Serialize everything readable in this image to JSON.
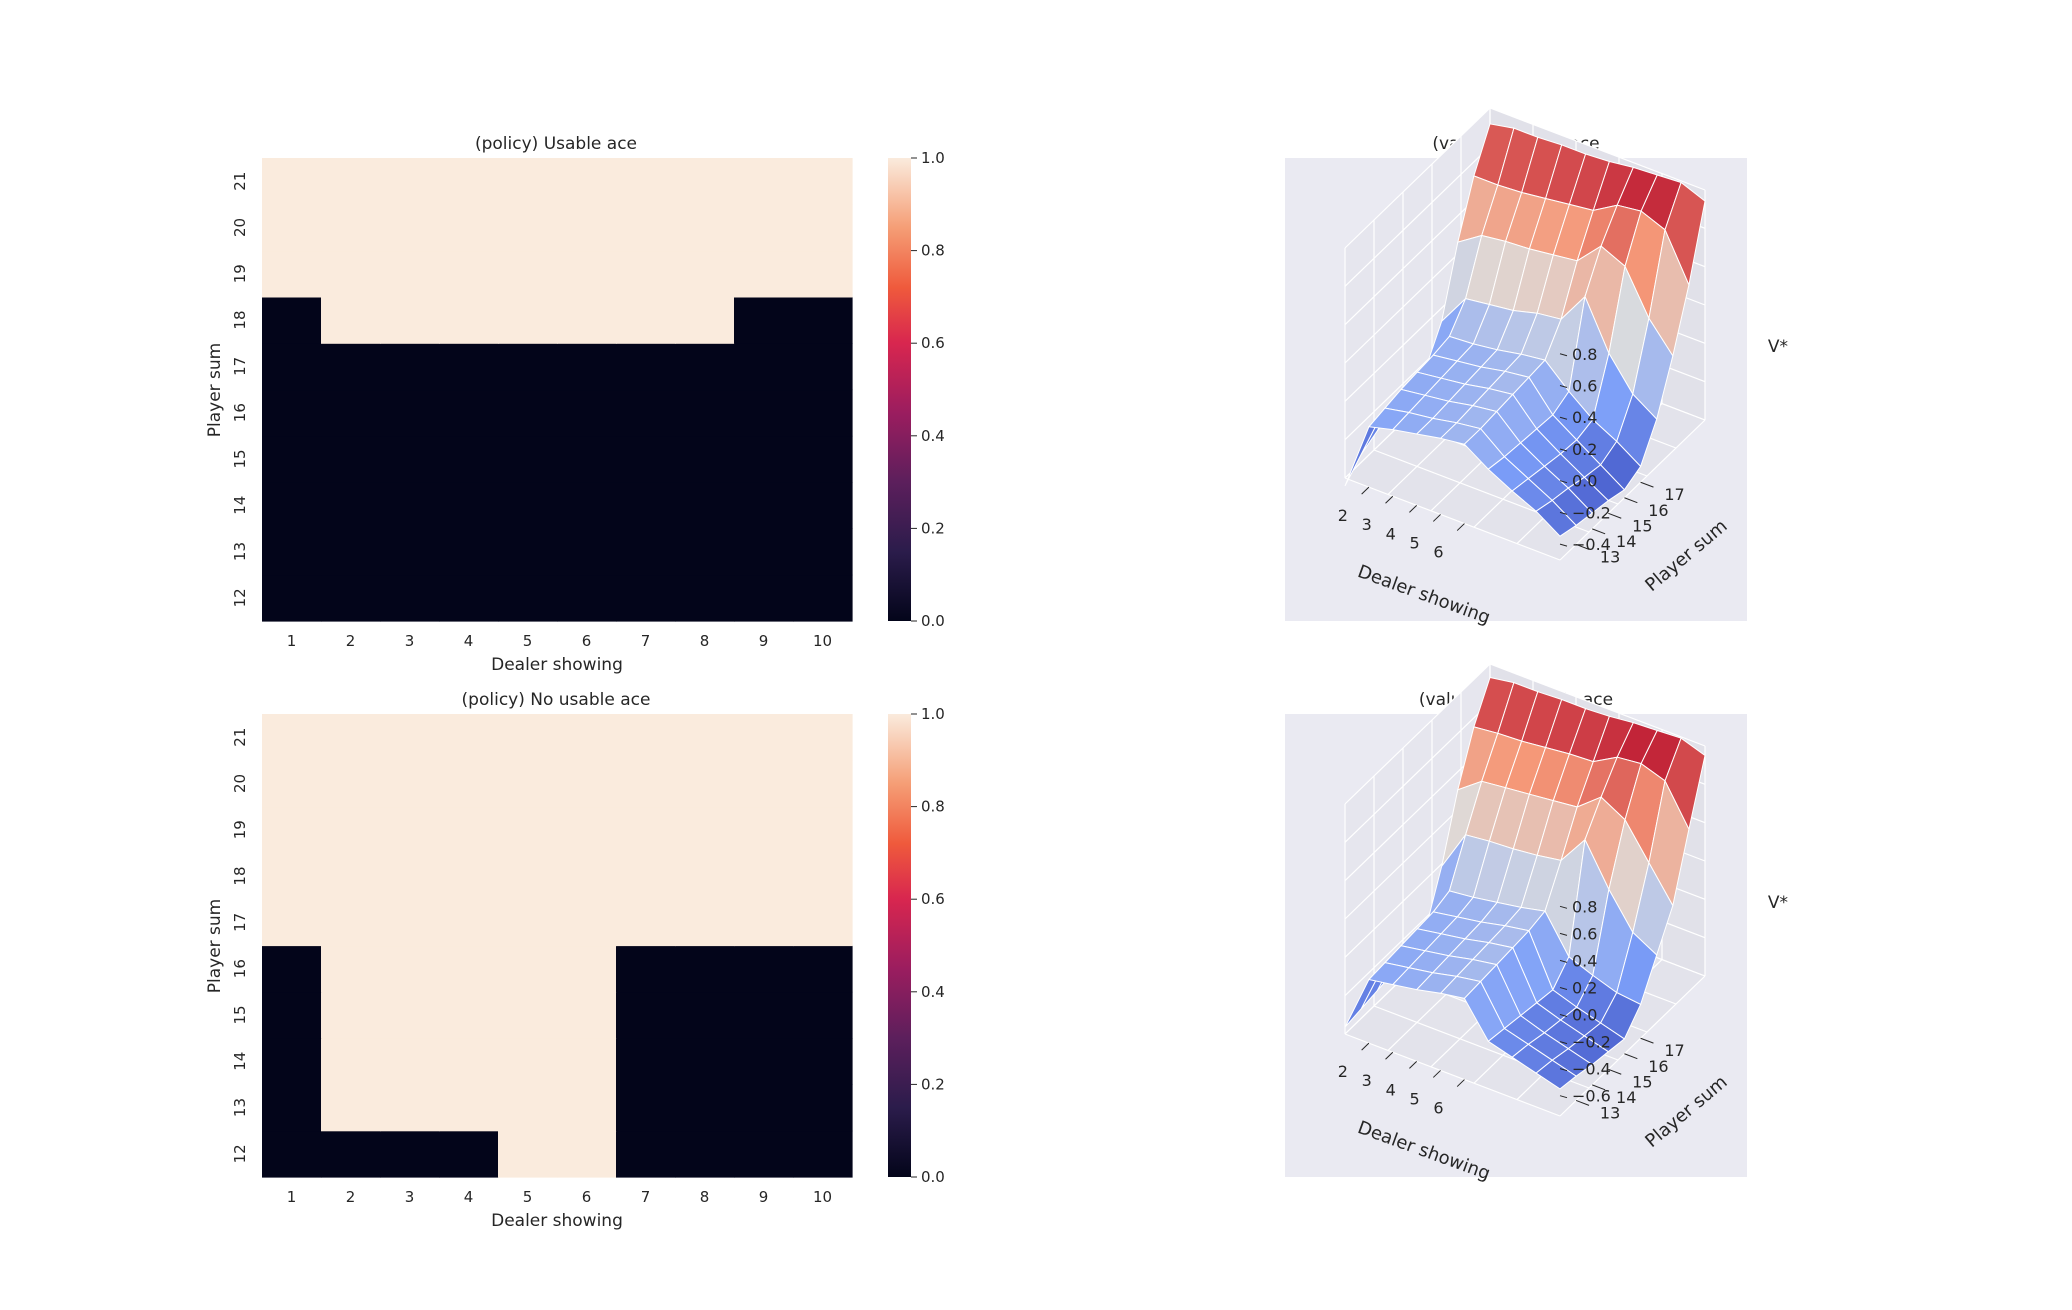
{
  "chart_data": [
    {
      "type": "heatmap",
      "title": "(policy) Usable ace",
      "xlabel": "Dealer showing",
      "ylabel": "Player sum",
      "x_categories": [
        "1",
        "2",
        "3",
        "4",
        "5",
        "6",
        "7",
        "8",
        "9",
        "10"
      ],
      "y_categories": [
        "12",
        "13",
        "14",
        "15",
        "16",
        "17",
        "18",
        "19",
        "20",
        "21"
      ],
      "values_by_row": {
        "12": [
          0,
          0,
          0,
          0,
          0,
          0,
          0,
          0,
          0,
          0
        ],
        "13": [
          0,
          0,
          0,
          0,
          0,
          0,
          0,
          0,
          0,
          0
        ],
        "14": [
          0,
          0,
          0,
          0,
          0,
          0,
          0,
          0,
          0,
          0
        ],
        "15": [
          0,
          0,
          0,
          0,
          0,
          0,
          0,
          0,
          0,
          0
        ],
        "16": [
          0,
          0,
          0,
          0,
          0,
          0,
          0,
          0,
          0,
          0
        ],
        "17": [
          0,
          0,
          0,
          0,
          0,
          0,
          0,
          0,
          0,
          0
        ],
        "18": [
          0,
          1,
          1,
          1,
          1,
          1,
          1,
          1,
          0,
          0
        ],
        "19": [
          1,
          1,
          1,
          1,
          1,
          1,
          1,
          1,
          1,
          1
        ],
        "20": [
          1,
          1,
          1,
          1,
          1,
          1,
          1,
          1,
          1,
          1
        ],
        "21": [
          1,
          1,
          1,
          1,
          1,
          1,
          1,
          1,
          1,
          1
        ]
      },
      "colorbar": {
        "range": [
          0.0,
          1.0
        ],
        "ticks": [
          "0.0",
          "0.2",
          "0.4",
          "0.6",
          "0.8",
          "1.0"
        ]
      }
    },
    {
      "type": "heatmap",
      "title": "(policy) No usable ace",
      "xlabel": "Dealer showing",
      "ylabel": "Player sum",
      "x_categories": [
        "1",
        "2",
        "3",
        "4",
        "5",
        "6",
        "7",
        "8",
        "9",
        "10"
      ],
      "y_categories": [
        "12",
        "13",
        "14",
        "15",
        "16",
        "17",
        "18",
        "19",
        "20",
        "21"
      ],
      "values_by_row": {
        "12": [
          0,
          0,
          0,
          0,
          1,
          1,
          0,
          0,
          0,
          0
        ],
        "13": [
          0,
          1,
          1,
          1,
          1,
          1,
          0,
          0,
          0,
          0
        ],
        "14": [
          0,
          1,
          1,
          1,
          1,
          1,
          0,
          0,
          0,
          0
        ],
        "15": [
          0,
          1,
          1,
          1,
          1,
          1,
          0,
          0,
          0,
          0
        ],
        "16": [
          0,
          1,
          1,
          1,
          1,
          1,
          0,
          0,
          0,
          0
        ],
        "17": [
          1,
          1,
          1,
          1,
          1,
          1,
          1,
          1,
          1,
          1
        ],
        "18": [
          1,
          1,
          1,
          1,
          1,
          1,
          1,
          1,
          1,
          1
        ],
        "19": [
          1,
          1,
          1,
          1,
          1,
          1,
          1,
          1,
          1,
          1
        ],
        "20": [
          1,
          1,
          1,
          1,
          1,
          1,
          1,
          1,
          1,
          1
        ],
        "21": [
          1,
          1,
          1,
          1,
          1,
          1,
          1,
          1,
          1,
          1
        ]
      },
      "colorbar": {
        "range": [
          0.0,
          1.0
        ],
        "ticks": [
          "0.0",
          "0.2",
          "0.4",
          "0.6",
          "0.8",
          "1.0"
        ]
      }
    },
    {
      "type": "surface",
      "title": "(values) Usable ace",
      "xlabel": "Dealer showing",
      "ylabel": "Player sum",
      "zlabel": "V*",
      "x_ticks": [
        "2",
        "3",
        "4",
        "5",
        "6"
      ],
      "y_ticks": [
        "13",
        "14",
        "15",
        "16",
        "17"
      ],
      "z_ticks": [
        "−0.4",
        "−0.2",
        "0.0",
        "0.2",
        "0.4",
        "0.6",
        "0.8"
      ],
      "zlim": [
        -0.5,
        0.95
      ],
      "x_values": [
        1,
        2,
        3,
        4,
        5,
        6,
        7,
        8,
        9,
        10
      ],
      "y_values": [
        12,
        13,
        14,
        15,
        16,
        17,
        18,
        19,
        20,
        21
      ],
      "z_by_row": {
        "12": [
          -0.55,
          -0.12,
          -0.08,
          -0.05,
          -0.02,
          0.0,
          -0.1,
          -0.18,
          -0.25,
          -0.35
        ],
        "13": [
          -0.45,
          -0.1,
          -0.07,
          -0.05,
          -0.02,
          0.0,
          -0.12,
          -0.2,
          -0.28,
          -0.38
        ],
        "14": [
          -0.4,
          -0.08,
          -0.06,
          -0.04,
          -0.01,
          0.01,
          -0.13,
          -0.22,
          -0.3,
          -0.4
        ],
        "15": [
          -0.38,
          -0.07,
          -0.05,
          -0.03,
          0.0,
          0.02,
          -0.14,
          -0.24,
          -0.33,
          -0.42
        ],
        "16": [
          -0.35,
          -0.06,
          -0.04,
          -0.02,
          0.01,
          0.03,
          -0.15,
          -0.25,
          -0.35,
          -0.45
        ],
        "17": [
          -0.3,
          -0.04,
          -0.03,
          -0.01,
          0.02,
          0.04,
          -0.1,
          -0.22,
          -0.3,
          -0.4
        ],
        "18": [
          -0.1,
          0.1,
          0.12,
          0.14,
          0.18,
          0.2,
          0.4,
          0.1,
          -0.1,
          -0.2
        ],
        "19": [
          0.3,
          0.4,
          0.42,
          0.43,
          0.45,
          0.47,
          0.62,
          0.55,
          0.28,
          0.1
        ],
        "20": [
          0.62,
          0.62,
          0.63,
          0.65,
          0.67,
          0.69,
          0.78,
          0.8,
          0.74,
          0.45
        ],
        "21": [
          0.85,
          0.88,
          0.88,
          0.89,
          0.89,
          0.9,
          0.92,
          0.93,
          0.94,
          0.88
        ]
      }
    },
    {
      "type": "surface",
      "title": "(values) No usable ace",
      "xlabel": "Dealer showing",
      "ylabel": "Player sum",
      "zlabel": "V*",
      "x_ticks": [
        "2",
        "3",
        "4",
        "5",
        "6"
      ],
      "y_ticks": [
        "13",
        "14",
        "15",
        "16",
        "17"
      ],
      "z_ticks": [
        "−0.6",
        "−0.4",
        "−0.2",
        "0.0",
        "0.2",
        "0.4",
        "0.6",
        "0.8"
      ],
      "zlim": [
        -0.75,
        0.95
      ],
      "x_values": [
        1,
        2,
        3,
        4,
        5,
        6,
        7,
        8,
        9,
        10
      ],
      "y_values": [
        12,
        13,
        14,
        15,
        16,
        17,
        18,
        19,
        20,
        21
      ],
      "z_by_row": {
        "12": [
          -0.7,
          -0.28,
          -0.25,
          -0.22,
          -0.18,
          -0.15,
          -0.4,
          -0.45,
          -0.5,
          -0.55
        ],
        "13": [
          -0.68,
          -0.27,
          -0.24,
          -0.21,
          -0.17,
          -0.14,
          -0.42,
          -0.47,
          -0.52,
          -0.57
        ],
        "14": [
          -0.66,
          -0.26,
          -0.23,
          -0.2,
          -0.16,
          -0.13,
          -0.44,
          -0.5,
          -0.55,
          -0.6
        ],
        "15": [
          -0.64,
          -0.25,
          -0.22,
          -0.19,
          -0.15,
          -0.12,
          -0.46,
          -0.52,
          -0.57,
          -0.62
        ],
        "16": [
          -0.62,
          -0.24,
          -0.21,
          -0.18,
          -0.14,
          -0.11,
          -0.48,
          -0.54,
          -0.59,
          -0.64
        ],
        "17": [
          -0.55,
          -0.2,
          -0.18,
          -0.15,
          -0.12,
          -0.08,
          -0.35,
          -0.42,
          -0.48,
          -0.5
        ],
        "18": [
          -0.2,
          0.1,
          0.12,
          0.13,
          0.15,
          0.18,
          0.4,
          0.1,
          -0.15,
          -0.25
        ],
        "19": [
          0.25,
          0.38,
          0.4,
          0.42,
          0.44,
          0.46,
          0.6,
          0.5,
          0.25,
          0.0
        ],
        "20": [
          0.6,
          0.62,
          0.63,
          0.65,
          0.67,
          0.68,
          0.78,
          0.8,
          0.74,
          0.45
        ],
        "21": [
          0.85,
          0.88,
          0.88,
          0.89,
          0.89,
          0.9,
          0.92,
          0.93,
          0.94,
          0.88
        ]
      }
    }
  ]
}
